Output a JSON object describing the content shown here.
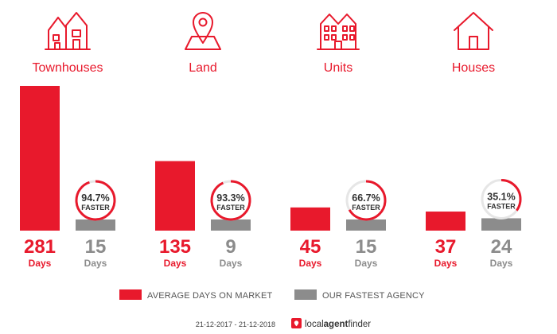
{
  "chart_data": {
    "type": "bar",
    "categories": [
      "Townhouses",
      "Land",
      "Units",
      "Houses"
    ],
    "icons": [
      "townhouse-icon",
      "land-pin-icon",
      "units-icon",
      "house-icon"
    ],
    "series": [
      {
        "name": "AVERAGE DAYS ON MARKET",
        "values": [
          281,
          135,
          45,
          37
        ],
        "color": "#e8192c"
      },
      {
        "name": "OUR FASTEST AGENCY",
        "values": [
          15,
          9,
          15,
          24
        ],
        "color": "#8c8c8c"
      }
    ],
    "value_unit": "Days",
    "percent_faster": [
      94.7,
      93.3,
      66.7,
      35.1
    ],
    "percent_labels": [
      "94.7%",
      "93.3%",
      "66.7%",
      "35.1%"
    ],
    "faster_label": "FASTER",
    "ylim": [
      0,
      281
    ],
    "grid": false,
    "legend_position": "bottom"
  },
  "footer": {
    "date_range": "21-12-2017 - 21-12-2018",
    "brand_light": "local",
    "brand_bold": "agent",
    "brand_end": "finder"
  },
  "colors": {
    "accent": "#e8192c",
    "agency": "#8c8c8c",
    "ring_track": "#e6e6e6",
    "text_dark": "#333333"
  }
}
